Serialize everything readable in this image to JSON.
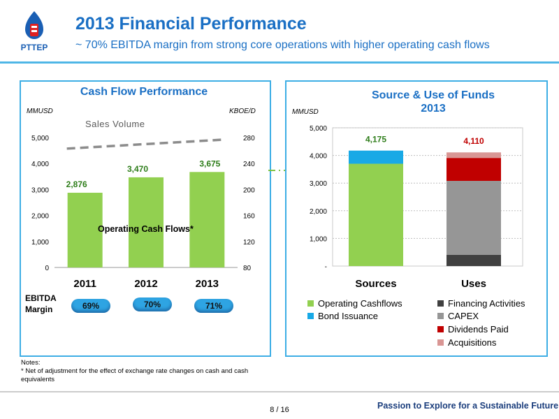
{
  "header": {
    "title": "2013 Financial Performance",
    "subtitle": "~ 70% EBITDA margin from strong core operations with higher operating cash flows",
    "logo_text": "PTTEP"
  },
  "left_panel": {
    "title": "Cash Flow Performance",
    "left_unit": "MMUSD",
    "right_unit": "KBOE/D",
    "line_label": "Sales Volume",
    "bar_label": "Operating Cash Flows*",
    "ebitda_label_line1": "EBITDA",
    "ebitda_label_line2": "Margin",
    "ebitda_margins": [
      "69%",
      "70%",
      "71%"
    ]
  },
  "right_panel": {
    "title_line1": "Source & Use of Funds",
    "title_line2": "2013",
    "unit": "MMUSD"
  },
  "notes": {
    "line1": "Notes:",
    "line2": "* Net of adjustment for the effect of exchange rate changes on cash and cash equivalents"
  },
  "footer": {
    "page": "8 / 16",
    "tagline": "Passion to Explore for a Sustainable Future"
  },
  "colors": {
    "brand_blue": "#1a6fc4",
    "green": "#92d050",
    "cyan": "#18a9e6",
    "dark_gray": "#404040",
    "gray": "#969696",
    "red": "#c00000",
    "pink": "#d99694"
  },
  "chart_data": [
    {
      "type": "bar",
      "title": "Cash Flow Performance",
      "categories": [
        "2011",
        "2012",
        "2013"
      ],
      "series": [
        {
          "name": "Operating Cash Flows*",
          "values": [
            2876,
            3470,
            3675
          ],
          "value_labels": [
            "2,876",
            "3,470",
            "3,675"
          ]
        },
        {
          "name": "Sales Volume",
          "type": "line",
          "axis": "right",
          "values": [
            263,
            268,
            277
          ]
        }
      ],
      "y_left": {
        "label": "MMUSD",
        "range": [
          0,
          5000
        ],
        "ticks": [
          "0",
          "1,000",
          "2,000",
          "3,000",
          "4,000",
          "5,000"
        ]
      },
      "y_right": {
        "label": "KBOE/D",
        "range": [
          80,
          280
        ],
        "ticks": [
          "80",
          "120",
          "160",
          "200",
          "240",
          "280"
        ]
      },
      "grid": false
    },
    {
      "type": "bar",
      "stacked": true,
      "title": "Source & Use of Funds 2013",
      "categories": [
        "Sources",
        "Uses"
      ],
      "series": [
        {
          "name": "Operating Cashflows",
          "values": [
            3700,
            0
          ]
        },
        {
          "name": "Bond Issuance",
          "values": [
            475,
            0
          ]
        },
        {
          "name": "Financing Activities",
          "values": [
            0,
            410
          ]
        },
        {
          "name": "CAPEX",
          "values": [
            0,
            2670
          ]
        },
        {
          "name": "Dividends Paid",
          "values": [
            0,
            830
          ]
        },
        {
          "name": "Acquisitions",
          "values": [
            0,
            200
          ]
        }
      ],
      "totals": [
        "4,175",
        "4,110"
      ],
      "y": {
        "label": "MMUSD",
        "range": [
          0,
          5000
        ],
        "ticks": [
          "-",
          "1,000",
          "2,000",
          "3,000",
          "4,000",
          "5,000"
        ]
      },
      "grid": true,
      "legend_position": "bottom"
    }
  ]
}
